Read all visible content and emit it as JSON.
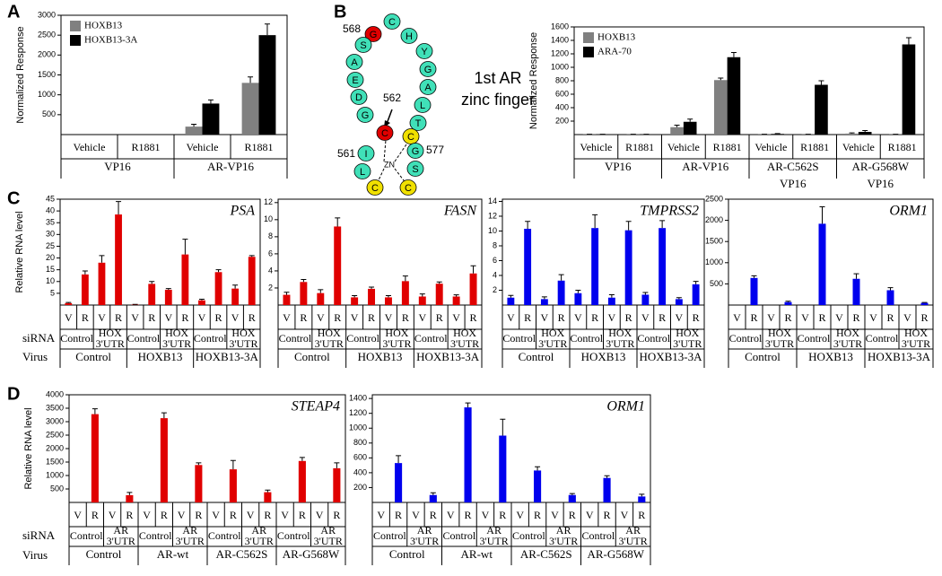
{
  "panels": [
    "A",
    "B",
    "C",
    "D"
  ],
  "row_labels": {
    "sirna": "siRNA",
    "virus": "Virus"
  },
  "diagram": {
    "residues": [
      "G",
      "C",
      "H",
      "Y",
      "G",
      "A",
      "L",
      "T",
      "C",
      "G",
      "S",
      "C",
      "C",
      "L",
      "I",
      "C",
      "G",
      "D",
      "E",
      "A",
      "S"
    ],
    "positions": [
      "568",
      "562",
      "561",
      "577"
    ],
    "title": [
      "1st AR",
      "zinc finger"
    ],
    "zn": "ZN"
  },
  "chart_data": [
    {
      "type": "bar",
      "ylabel": "Normalized Response",
      "ylim": [
        0,
        3000
      ],
      "yticks": [
        500,
        1000,
        1500,
        2000,
        2500,
        3000
      ],
      "categories": [
        "Vehicle",
        "R1881",
        "Vehicle",
        "R1881"
      ],
      "groups": [
        [
          "VP16"
        ],
        [
          "AR-VP16"
        ]
      ],
      "legend": "upper left",
      "series": [
        {
          "name": "HOXB13",
          "color": "#808080",
          "values": [
            0,
            0,
            200,
            1300
          ],
          "errors": [
            0,
            0,
            60,
            150
          ]
        },
        {
          "name": "HOXB13-3A",
          "color": "#000000",
          "values": [
            0,
            0,
            780,
            2500
          ],
          "errors": [
            0,
            0,
            90,
            280
          ]
        }
      ]
    },
    {
      "type": "bar",
      "ylabel": "Normalized Response",
      "ylim": [
        0,
        1600
      ],
      "yticks": [
        200,
        400,
        600,
        800,
        1000,
        1200,
        1400,
        1600
      ],
      "categories": [
        "Vehicle",
        "R1881",
        "Vehicle",
        "R1881",
        "Vehicle",
        "R1881",
        "Vehicle",
        "R1881"
      ],
      "groups": [
        [
          "VP16"
        ],
        [
          "AR-VP16"
        ],
        [
          "AR-C562S",
          "VP16"
        ],
        [
          "AR-G568W",
          "VP16"
        ]
      ],
      "legend": "upper left",
      "series": [
        {
          "name": "HOXB13",
          "color": "#808080",
          "values": [
            3,
            3,
            110,
            810,
            3,
            3,
            15,
            3
          ],
          "errors": [
            2,
            2,
            30,
            30,
            2,
            2,
            10,
            2
          ]
        },
        {
          "name": "ARA-70",
          "color": "#000000",
          "values": [
            3,
            3,
            190,
            1150,
            10,
            740,
            40,
            1340
          ],
          "errors": [
            2,
            2,
            40,
            70,
            5,
            60,
            20,
            100
          ]
        }
      ]
    },
    {
      "type": "bar",
      "title": "PSA",
      "ylabel": "Relative RNA level",
      "ylim": [
        0,
        45
      ],
      "yticks": [
        5,
        10,
        15,
        20,
        25,
        30,
        35,
        40,
        45
      ],
      "categories": [
        "V",
        "R",
        "V",
        "R",
        "V",
        "R",
        "V",
        "R",
        "V",
        "R",
        "V",
        "R"
      ],
      "groups": [
        [
          "Control"
        ],
        [
          "HOX",
          "3'UTR"
        ],
        [
          "Control"
        ],
        [
          "HOX",
          "3'UTR"
        ],
        [
          "Control"
        ],
        [
          "HOX",
          "3'UTR"
        ]
      ],
      "supergroups": [
        "Control",
        "HOXB13",
        "HOXB13-3A"
      ],
      "series": [
        {
          "color": "#e00000",
          "values": [
            0.8,
            13,
            18,
            38.5,
            0.2,
            9,
            6.5,
            21.5,
            2,
            14,
            7,
            20.5
          ],
          "errors": [
            0.3,
            1.5,
            3,
            5.5,
            0.1,
            1,
            0.5,
            6.5,
            0.5,
            1,
            1.5,
            0.5
          ]
        }
      ]
    },
    {
      "type": "bar",
      "title": "FASN",
      "ylim": [
        0,
        12.4
      ],
      "yticks": [
        2,
        4,
        6,
        8,
        10,
        12
      ],
      "categories": [
        "V",
        "R",
        "V",
        "R",
        "V",
        "R",
        "V",
        "R",
        "V",
        "R",
        "V",
        "R"
      ],
      "groups": [
        [
          "Control"
        ],
        [
          "HOX",
          "3'UTR"
        ],
        [
          "Control"
        ],
        [
          "HOX",
          "3'UTR"
        ],
        [
          "Control"
        ],
        [
          "HOX",
          "3'UTR"
        ]
      ],
      "supergroups": [
        "Control",
        "HOXB13",
        "HOXB13-3A"
      ],
      "series": [
        {
          "color": "#e00000",
          "values": [
            1.2,
            2.7,
            1.4,
            9.2,
            0.9,
            1.9,
            0.9,
            2.8,
            1.0,
            2.5,
            1.0,
            3.7
          ],
          "errors": [
            0.3,
            0.3,
            0.4,
            1,
            0.2,
            0.2,
            0.2,
            0.6,
            0.3,
            0.2,
            0.2,
            0.9
          ]
        }
      ]
    },
    {
      "type": "bar",
      "title": "TMPRSS2",
      "ylim": [
        0,
        14.3
      ],
      "yticks": [
        2,
        4,
        6,
        8,
        10,
        12,
        14
      ],
      "categories": [
        "V",
        "R",
        "V",
        "R",
        "V",
        "R",
        "V",
        "R",
        "V",
        "R",
        "V",
        "R"
      ],
      "groups": [
        [
          "Control"
        ],
        [
          "HOX",
          "3'UTR"
        ],
        [
          "Control"
        ],
        [
          "HOX",
          "3'UTR"
        ],
        [
          "Control"
        ],
        [
          "HOX",
          "3'UTR"
        ]
      ],
      "supergroups": [
        "Control",
        "HOXB13",
        "HOXB13-3A"
      ],
      "series": [
        {
          "color": "#0000ee",
          "values": [
            1.0,
            10.3,
            0.8,
            3.3,
            1.6,
            10.4,
            1.0,
            10.1,
            1.4,
            10.4,
            0.8,
            2.8
          ],
          "errors": [
            0.3,
            1,
            0.3,
            0.8,
            0.4,
            1.8,
            0.4,
            1.2,
            0.3,
            1,
            0.2,
            0.4
          ]
        }
      ]
    },
    {
      "type": "bar",
      "title": "ORM1",
      "ylim": [
        0,
        2500
      ],
      "yticks": [
        500,
        1000,
        1500,
        2000,
        2500
      ],
      "categories": [
        "V",
        "R",
        "V",
        "R",
        "V",
        "R",
        "V",
        "R",
        "V",
        "R",
        "V",
        "R"
      ],
      "groups": [
        [
          "Control"
        ],
        [
          "HOX",
          "3'UTR"
        ],
        [
          "Control"
        ],
        [
          "HOX",
          "3'UTR"
        ],
        [
          "Control"
        ],
        [
          "HOX",
          "3'UTR"
        ]
      ],
      "supergroups": [
        "Control",
        "HOXB13",
        "HOXB13-3A"
      ],
      "series": [
        {
          "color": "#0000ee",
          "values": [
            0,
            640,
            0,
            70,
            0,
            1920,
            0,
            620,
            0,
            350,
            0,
            50
          ],
          "errors": [
            0,
            50,
            0,
            20,
            0,
            400,
            0,
            120,
            0,
            60,
            0,
            10
          ]
        }
      ]
    },
    {
      "type": "bar",
      "title": "STEAP4",
      "ylabel": "Relative RNA level",
      "ylim": [
        0,
        4000
      ],
      "yticks": [
        500,
        1000,
        1500,
        2000,
        2500,
        3000,
        3500,
        4000
      ],
      "categories": [
        "V",
        "R",
        "V",
        "R",
        "V",
        "R",
        "V",
        "R",
        "V",
        "R",
        "V",
        "R",
        "V",
        "R",
        "V",
        "R"
      ],
      "groups": [
        [
          "Control"
        ],
        [
          "AR",
          "3'UTR"
        ],
        [
          "Control"
        ],
        [
          "AR",
          "3'UTR"
        ],
        [
          "Control"
        ],
        [
          "AR",
          "3'UTR"
        ],
        [
          "Control"
        ],
        [
          "AR",
          "3'UTR"
        ]
      ],
      "supergroups": [
        "Control",
        "AR-wt",
        "AR-C562S",
        "AR-G568W"
      ],
      "series": [
        {
          "color": "#e00000",
          "values": [
            0,
            3280,
            0,
            270,
            0,
            3130,
            0,
            1390,
            0,
            1230,
            0,
            380,
            0,
            1540,
            0,
            1270
          ],
          "errors": [
            0,
            200,
            0,
            100,
            0,
            200,
            0,
            80,
            0,
            330,
            0,
            80,
            0,
            130,
            0,
            200
          ]
        }
      ]
    },
    {
      "type": "bar",
      "title": "ORM1",
      "ylim": [
        0,
        1450
      ],
      "yticks": [
        200,
        400,
        600,
        800,
        1000,
        1200,
        1400
      ],
      "categories": [
        "V",
        "R",
        "V",
        "R",
        "V",
        "R",
        "V",
        "R",
        "V",
        "R",
        "V",
        "R",
        "V",
        "R",
        "V",
        "R"
      ],
      "groups": [
        [
          "Control"
        ],
        [
          "AR",
          "3'UTR"
        ],
        [
          "Control"
        ],
        [
          "AR",
          "3'UTR"
        ],
        [
          "Control"
        ],
        [
          "AR",
          "3'UTR"
        ],
        [
          "Control"
        ],
        [
          "AR",
          "3'UTR"
        ]
      ],
      "supergroups": [
        "Control",
        "AR-wt",
        "AR-C562S",
        "AR-G568W"
      ],
      "series": [
        {
          "color": "#0000ee",
          "values": [
            0,
            530,
            0,
            100,
            0,
            1280,
            0,
            900,
            0,
            430,
            0,
            100,
            0,
            330,
            0,
            80
          ],
          "errors": [
            0,
            100,
            0,
            30,
            0,
            60,
            0,
            220,
            0,
            50,
            0,
            20,
            0,
            30,
            0,
            30
          ]
        }
      ]
    }
  ]
}
